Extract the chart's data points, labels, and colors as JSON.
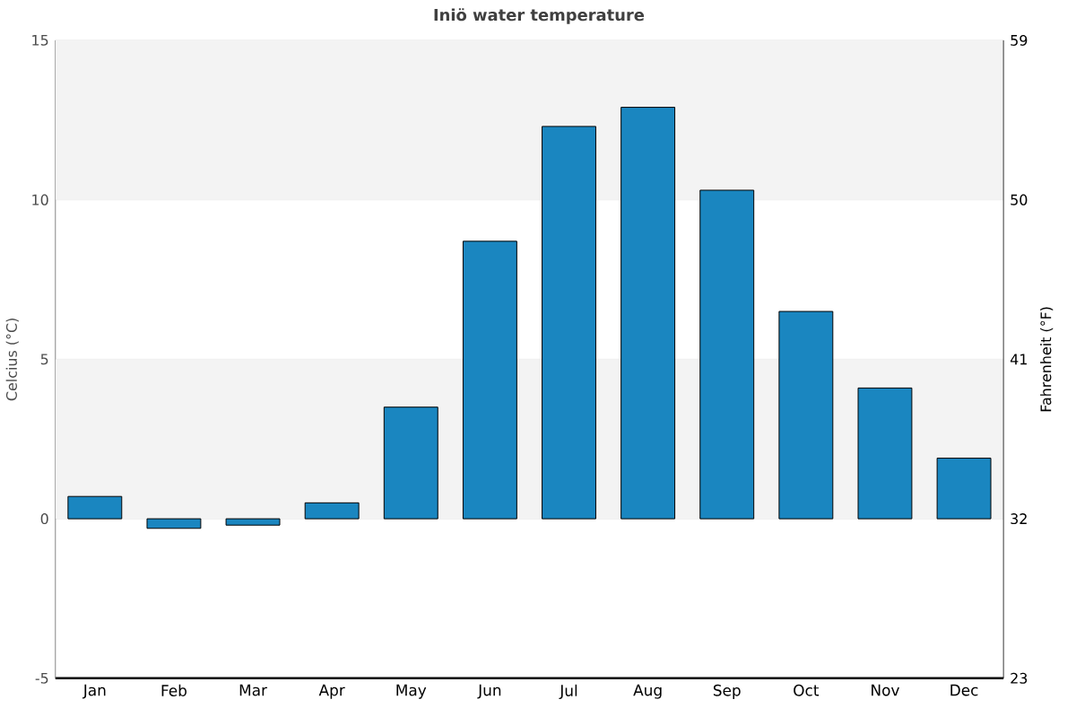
{
  "chart_data": {
    "type": "bar",
    "title": "Iniö water temperature",
    "categories": [
      "Jan",
      "Feb",
      "Mar",
      "Apr",
      "May",
      "Jun",
      "Jul",
      "Aug",
      "Sep",
      "Oct",
      "Nov",
      "Dec"
    ],
    "values": [
      0.7,
      -0.3,
      -0.2,
      0.5,
      3.5,
      8.7,
      12.3,
      12.9,
      10.3,
      6.5,
      4.1,
      1.9
    ],
    "color": "#1a86c0",
    "ylabel": "Celcius (°C)",
    "y2label": "Fahrenheit (°F)",
    "ylim": [
      -5,
      15
    ],
    "yticks": [
      -5,
      0,
      5,
      10,
      15
    ],
    "y2lim": [
      23,
      59
    ],
    "y2ticks": [
      23,
      32,
      41,
      50,
      59
    ],
    "grid": "y",
    "bands": [
      {
        "axis": "y",
        "from": 10,
        "to": 15,
        "color": "#f3f3f3"
      },
      {
        "axis": "y",
        "from": 0,
        "to": 5,
        "color": "#f3f3f3"
      }
    ]
  }
}
